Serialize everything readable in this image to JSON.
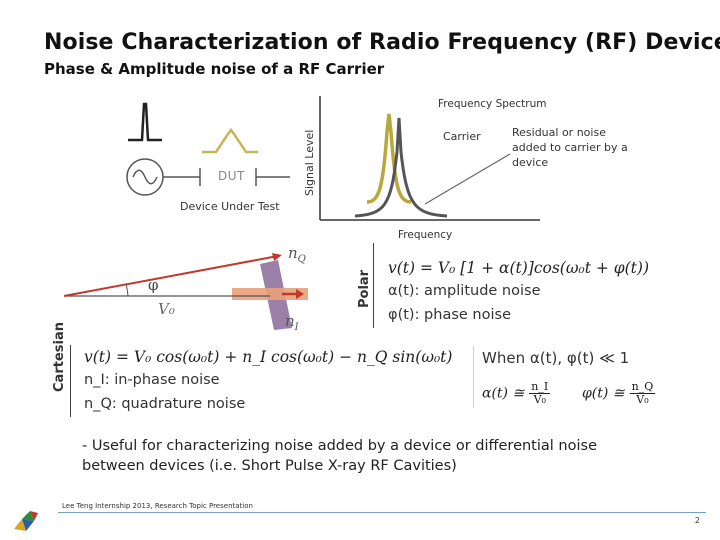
{
  "slide": {
    "title": "Noise Characterization of Radio Frequency (RF) Devices",
    "subtitle": "Phase & Amplitude noise of a RF Carrier",
    "page_number": "2",
    "footer": "Lee Teng Internship 2013, Research Topic Presentation"
  },
  "dut_diagram": {
    "box_label": "DUT",
    "caption": "Device Under Test"
  },
  "spectrum": {
    "title": "Frequency Spectrum",
    "y_axis_label": "Signal Level",
    "x_axis_label": "Frequency",
    "carrier_label": "Carrier",
    "noise_label_lines": [
      "Residual or noise",
      "added to carrier by a",
      "device"
    ]
  },
  "phasor": {
    "phi": "φ",
    "v0": "V₀",
    "nq": "n",
    "nq_sub": "Q",
    "ni": "n",
    "ni_sub": "I",
    "polar_label": "Polar",
    "cartesian_label": "Cartesian"
  },
  "polar_eq": {
    "line1": "v(t) = V₀ [1 + α(t)]cos(ω₀t + φ(t))",
    "line2": "α(t): amplitude noise",
    "line3": "φ(t): phase noise"
  },
  "cartesian_eq": {
    "line1": "v(t) = V₀ cos(ω₀t) + n_I cos(ω₀t) − n_Q sin(ω₀t)",
    "line2": "n_I: in-phase noise",
    "line3": "n_Q: quadrature noise",
    "condition": "When α(t), φ(t) ≪ 1",
    "approx_alpha_lhs": "α(t) ≅",
    "approx_alpha_num": "n_I",
    "approx_alpha_den": "V₀",
    "approx_phi_lhs": "φ(t) ≅",
    "approx_phi_num": "n_Q",
    "approx_phi_den": "V₀"
  },
  "bullet": "- Useful for characterizing noise added by a device or differential noise between devices (i.e. Short Pulse X-ray RF Cavities)",
  "colors": {
    "noise_olive": "#b8a83a",
    "phasor_red": "#c0392b",
    "orange": "#e07a3a",
    "purple": "#7b5a8a",
    "gray": "#555555"
  }
}
